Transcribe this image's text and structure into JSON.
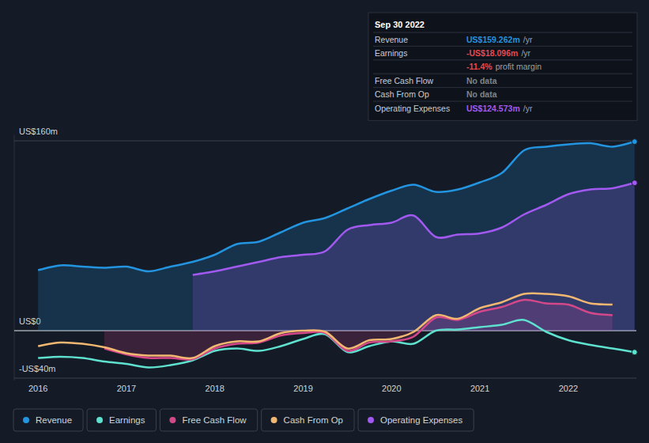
{
  "chart_data": {
    "type": "line",
    "x": [
      2016.0,
      2016.25,
      2016.5,
      2016.75,
      2017.0,
      2017.25,
      2017.5,
      2017.75,
      2018.0,
      2018.25,
      2018.5,
      2018.75,
      2019.0,
      2019.25,
      2019.5,
      2019.75,
      2020.0,
      2020.25,
      2020.5,
      2020.75,
      2021.0,
      2021.25,
      2021.5,
      2021.75,
      2022.0,
      2022.25,
      2022.5,
      2022.75
    ],
    "xlim": [
      2015.73,
      2022.77
    ],
    "xticks": [
      2016,
      2017,
      2018,
      2019,
      2020,
      2021,
      2022
    ],
    "ylim": [
      -42,
      165
    ],
    "yticks": [
      {
        "value": -40,
        "label": "-US$40m"
      },
      {
        "value": 0,
        "label": "US$0"
      },
      {
        "value": 160,
        "label": "US$160m"
      }
    ],
    "grid": true,
    "legend": "bottom",
    "series": [
      {
        "name": "Revenue",
        "color": "#2394df",
        "type": "area",
        "values": [
          51,
          55,
          54,
          53,
          54,
          50,
          54,
          58,
          64,
          73,
          75,
          83,
          91,
          95,
          103,
          111,
          118,
          123,
          117,
          119,
          125,
          133,
          152,
          155,
          157,
          158,
          155,
          159.262
        ]
      },
      {
        "name": "Earnings",
        "color": "#5fe1cf",
        "type": "line",
        "values": [
          -23,
          -22,
          -23,
          -26,
          -28,
          -31,
          -29,
          -25,
          -17,
          -15,
          -17,
          -13,
          -7,
          -3,
          -18,
          -13,
          -9,
          -11,
          0,
          1,
          3,
          5,
          9,
          -1,
          -8,
          -12,
          -15,
          -18.096
        ]
      },
      {
        "name": "Free Cash Flow",
        "color": "#d4488a",
        "type": "area",
        "values": [
          null,
          null,
          null,
          -15,
          -20,
          -23,
          -23,
          -24,
          -15,
          -11,
          -10,
          -4,
          -2,
          -2,
          -17,
          -10,
          -9,
          -5,
          11,
          9,
          16,
          20,
          26,
          23,
          22,
          15,
          13,
          null
        ]
      },
      {
        "name": "Cash From Op",
        "color": "#f2b872",
        "type": "line",
        "values": [
          -13,
          -10,
          -11,
          -14,
          -19,
          -21,
          -21,
          -23,
          -13,
          -9,
          -9,
          -2,
          0,
          -1,
          -15,
          -8,
          -7,
          -1,
          13,
          10,
          19,
          24,
          31,
          31,
          29,
          23,
          22,
          null
        ]
      },
      {
        "name": "Operating Expenses",
        "color": "#a259f0",
        "type": "area",
        "values": [
          null,
          null,
          null,
          null,
          null,
          null,
          null,
          47,
          50,
          54,
          58,
          62,
          64,
          67,
          85,
          89,
          91,
          97,
          79,
          81,
          82,
          87,
          98,
          106,
          115,
          119,
          120,
          124.573
        ]
      }
    ],
    "tooltip": {
      "title": "Sep 30 2022",
      "rows": [
        {
          "label": "Revenue",
          "value": "US$159.262m",
          "unit": "/yr",
          "color": "#2394df"
        },
        {
          "label": "Earnings",
          "value": "-US$18.096m",
          "unit": "/yr",
          "color": "#e5484d"
        },
        {
          "value": "-11.4%",
          "unit": "profit margin",
          "color": "#e5484d"
        },
        {
          "label": "Free Cash Flow",
          "value": "No data",
          "color": "#7d838c"
        },
        {
          "label": "Cash From Op",
          "value": "No data",
          "color": "#7d838c"
        },
        {
          "label": "Operating Expenses",
          "value": "US$124.573m",
          "unit": "/yr",
          "color": "#a259f0"
        }
      ]
    }
  }
}
